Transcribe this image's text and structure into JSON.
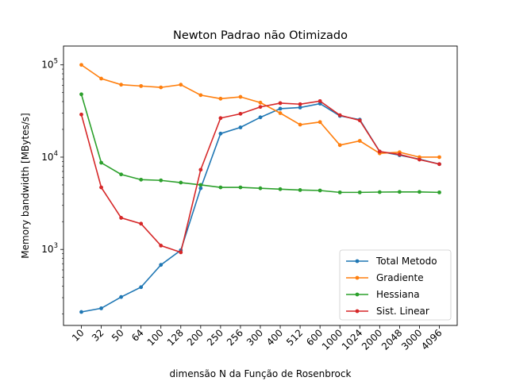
{
  "chart_data": {
    "type": "line",
    "title": "Newton Padrao não Otimizado",
    "xlabel": "dimensão N da Função de Rosenbrock",
    "ylabel": "Memory bandwidth [MBytes/s]",
    "yscale": "log",
    "ylim": [
      150,
      160000
    ],
    "grid": false,
    "legend_position": "lower-right",
    "categories": [
      "10",
      "32",
      "50",
      "64",
      "100",
      "128",
      "200",
      "250",
      "256",
      "300",
      "400",
      "512",
      "600",
      "1000",
      "1024",
      "2000",
      "2048",
      "3000",
      "4096"
    ],
    "yticks": [
      {
        "value": 1000,
        "base": "10",
        "exp": "3"
      },
      {
        "value": 10000,
        "base": "10",
        "exp": "4"
      },
      {
        "value": 100000,
        "base": "10",
        "exp": "5"
      }
    ],
    "series": [
      {
        "name": "Total Metodo",
        "color": "#1f77b4",
        "values": [
          210,
          230,
          305,
          390,
          680,
          980,
          4600,
          18000,
          21000,
          27000,
          33500,
          34500,
          38000,
          28000,
          25500,
          11500,
          10500,
          9500,
          8400
        ]
      },
      {
        "name": "Gradiente",
        "color": "#ff7f0e",
        "values": [
          100000,
          71000,
          61000,
          59000,
          57000,
          61000,
          47000,
          43000,
          45000,
          39000,
          30000,
          22500,
          24000,
          13500,
          15000,
          11000,
          11300,
          10000,
          10000
        ]
      },
      {
        "name": "Hessiana",
        "color": "#2ca02c",
        "values": [
          48000,
          8700,
          6500,
          5700,
          5600,
          5300,
          5000,
          4700,
          4700,
          4600,
          4500,
          4400,
          4350,
          4150,
          4150,
          4180,
          4200,
          4200,
          4150
        ]
      },
      {
        "name": "Sist. Linear",
        "color": "#d62728",
        "values": [
          29000,
          4700,
          2200,
          1900,
          1100,
          930,
          7300,
          26500,
          29500,
          35000,
          38500,
          37500,
          40500,
          28500,
          25000,
          11500,
          10700,
          9400,
          8400
        ]
      }
    ]
  }
}
